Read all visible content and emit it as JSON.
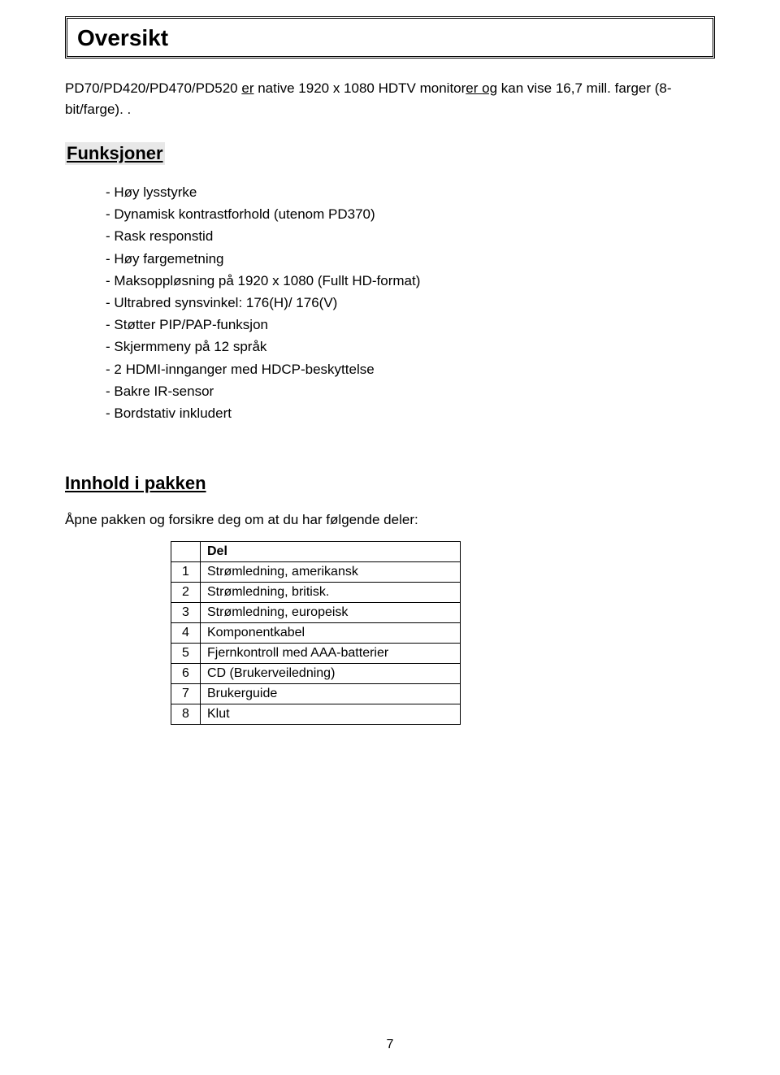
{
  "title": "Oversikt",
  "intro_parts": {
    "p1": "PD70/PD420/PD470/PD520 ",
    "p2_u": "er",
    "p3": " native 1920 x 1080 HDTV monitor",
    "p4_u": "er og",
    "p5": " kan vise 16,7 mill. farger (8-bit/farge). ."
  },
  "section_funksjoner": "Funksjoner",
  "features": [
    "Høy lysstyrke",
    "Dynamisk kontrastforhold (utenom PD370)",
    "Rask responstid",
    "Høy fargemetning",
    "Maksoppløsning på 1920 x 1080 (Fullt HD-format)",
    "Ultrabred synsvinkel: 176(H)/ 176(V)",
    "Støtter PIP/PAP-funksjon",
    "Skjermmeny på 12 språk",
    "2 HDMI-innganger med HDCP-beskyttelse",
    "Bakre IR-sensor",
    "Bordstativ inkludert"
  ],
  "section_innhold": "Innhold i pakken",
  "intro_innhold": "Åpne pakken og forsikre deg om at du har følgende deler:",
  "table": {
    "header": "Del",
    "rows": [
      {
        "n": "1",
        "d": "Strømledning, amerikansk"
      },
      {
        "n": "2",
        "d": "Strømledning, britisk."
      },
      {
        "n": "3",
        "d": "Strømledning, europeisk"
      },
      {
        "n": "4",
        "d": "Komponentkabel"
      },
      {
        "n": "5",
        "d": "Fjernkontroll med AAA-batterier"
      },
      {
        "n": "6",
        "d": "CD (Brukerveiledning)"
      },
      {
        "n": "7",
        "d": "Brukerguide"
      },
      {
        "n": "8",
        "d": "Klut"
      }
    ]
  },
  "page_number": "7"
}
